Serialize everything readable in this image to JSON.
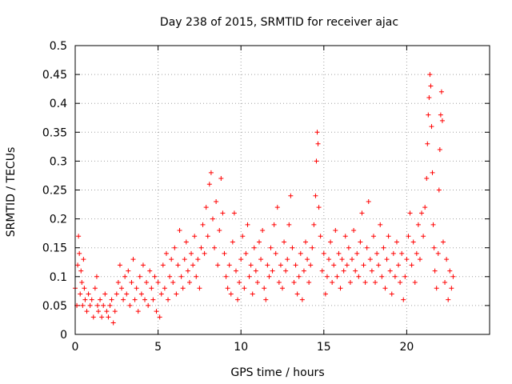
{
  "chart_data": {
    "type": "scatter",
    "title": "Day 238 of 2015, SRMTID for receiver ajac",
    "xlabel": "GPS time / hours",
    "ylabel": "SRMTID / TECUs",
    "xlim": [
      0,
      25
    ],
    "ylim": [
      0,
      0.5
    ],
    "xticks": [
      0,
      5,
      10,
      15,
      20
    ],
    "xtick_labels": [
      "0",
      "5",
      "10",
      "15",
      "20"
    ],
    "yticks": [
      0,
      0.05,
      0.1,
      0.15,
      0.2,
      0.25,
      0.3,
      0.35,
      0.4,
      0.45,
      0.5
    ],
    "ytick_labels": [
      "0",
      "0.05",
      "0.1",
      "0.15",
      "0.2",
      "0.25",
      "0.3",
      "0.35",
      "0.4",
      "0.45",
      "0.5"
    ],
    "grid": true,
    "marker": "+",
    "color": "#ff0000",
    "series": [
      {
        "name": "SRMTID",
        "points": [
          [
            0.0,
            0.08
          ],
          [
            0.1,
            0.05
          ],
          [
            0.15,
            0.12
          ],
          [
            0.2,
            0.17
          ],
          [
            0.25,
            0.14
          ],
          [
            0.3,
            0.07
          ],
          [
            0.35,
            0.11
          ],
          [
            0.4,
            0.09
          ],
          [
            0.45,
            0.05
          ],
          [
            0.5,
            0.13
          ],
          [
            0.55,
            0.08
          ],
          [
            0.6,
            0.06
          ],
          [
            0.7,
            0.04
          ],
          [
            0.8,
            0.07
          ],
          [
            0.9,
            0.05
          ],
          [
            1.0,
            0.06
          ],
          [
            1.1,
            0.03
          ],
          [
            1.2,
            0.08
          ],
          [
            1.3,
            0.1
          ],
          [
            1.35,
            0.05
          ],
          [
            1.4,
            0.04
          ],
          [
            1.5,
            0.06
          ],
          [
            1.6,
            0.03
          ],
          [
            1.7,
            0.05
          ],
          [
            1.8,
            0.07
          ],
          [
            1.9,
            0.04
          ],
          [
            2.0,
            0.03
          ],
          [
            2.1,
            0.05
          ],
          [
            2.2,
            0.06
          ],
          [
            2.3,
            0.02
          ],
          [
            2.4,
            0.04
          ],
          [
            2.5,
            0.07
          ],
          [
            2.6,
            0.09
          ],
          [
            2.7,
            0.12
          ],
          [
            2.8,
            0.08
          ],
          [
            2.9,
            0.06
          ],
          [
            3.0,
            0.1
          ],
          [
            3.1,
            0.07
          ],
          [
            3.2,
            0.11
          ],
          [
            3.3,
            0.05
          ],
          [
            3.4,
            0.09
          ],
          [
            3.5,
            0.13
          ],
          [
            3.6,
            0.06
          ],
          [
            3.7,
            0.08
          ],
          [
            3.8,
            0.04
          ],
          [
            3.9,
            0.1
          ],
          [
            4.0,
            0.07
          ],
          [
            4.1,
            0.12
          ],
          [
            4.2,
            0.06
          ],
          [
            4.3,
            0.09
          ],
          [
            4.4,
            0.05
          ],
          [
            4.5,
            0.11
          ],
          [
            4.6,
            0.08
          ],
          [
            4.7,
            0.06
          ],
          [
            4.8,
            0.1
          ],
          [
            4.9,
            0.04
          ],
          [
            5.0,
            0.09
          ],
          [
            5.1,
            0.03
          ],
          [
            5.2,
            0.07
          ],
          [
            5.3,
            0.12
          ],
          [
            5.4,
            0.08
          ],
          [
            5.5,
            0.14
          ],
          [
            5.6,
            0.06
          ],
          [
            5.7,
            0.1
          ],
          [
            5.8,
            0.13
          ],
          [
            5.9,
            0.09
          ],
          [
            6.0,
            0.15
          ],
          [
            6.1,
            0.07
          ],
          [
            6.2,
            0.12
          ],
          [
            6.3,
            0.18
          ],
          [
            6.4,
            0.1
          ],
          [
            6.5,
            0.08
          ],
          [
            6.6,
            0.13
          ],
          [
            6.7,
            0.16
          ],
          [
            6.8,
            0.11
          ],
          [
            6.9,
            0.09
          ],
          [
            7.0,
            0.14
          ],
          [
            7.1,
            0.12
          ],
          [
            7.2,
            0.17
          ],
          [
            7.3,
            0.1
          ],
          [
            7.4,
            0.13
          ],
          [
            7.5,
            0.08
          ],
          [
            7.6,
            0.15
          ],
          [
            7.7,
            0.19
          ],
          [
            7.8,
            0.14
          ],
          [
            7.9,
            0.22
          ],
          [
            8.0,
            0.17
          ],
          [
            8.1,
            0.26
          ],
          [
            8.2,
            0.28
          ],
          [
            8.3,
            0.2
          ],
          [
            8.4,
            0.15
          ],
          [
            8.5,
            0.23
          ],
          [
            8.6,
            0.12
          ],
          [
            8.7,
            0.18
          ],
          [
            8.8,
            0.27
          ],
          [
            8.9,
            0.21
          ],
          [
            9.0,
            0.14
          ],
          [
            9.1,
            0.1
          ],
          [
            9.2,
            0.08
          ],
          [
            9.3,
            0.12
          ],
          [
            9.4,
            0.07
          ],
          [
            9.5,
            0.16
          ],
          [
            9.6,
            0.21
          ],
          [
            9.7,
            0.11
          ],
          [
            9.8,
            0.06
          ],
          [
            9.9,
            0.09
          ],
          [
            10.0,
            0.13
          ],
          [
            10.1,
            0.17
          ],
          [
            10.2,
            0.08
          ],
          [
            10.3,
            0.14
          ],
          [
            10.4,
            0.19
          ],
          [
            10.5,
            0.1
          ],
          [
            10.6,
            0.12
          ],
          [
            10.7,
            0.07
          ],
          [
            10.8,
            0.15
          ],
          [
            10.9,
            0.11
          ],
          [
            11.0,
            0.09
          ],
          [
            11.1,
            0.16
          ],
          [
            11.2,
            0.13
          ],
          [
            11.3,
            0.18
          ],
          [
            11.4,
            0.08
          ],
          [
            11.5,
            0.06
          ],
          [
            11.6,
            0.12
          ],
          [
            11.7,
            0.1
          ],
          [
            11.8,
            0.15
          ],
          [
            11.9,
            0.11
          ],
          [
            12.0,
            0.19
          ],
          [
            12.1,
            0.14
          ],
          [
            12.2,
            0.22
          ],
          [
            12.3,
            0.09
          ],
          [
            12.4,
            0.12
          ],
          [
            12.5,
            0.08
          ],
          [
            12.6,
            0.16
          ],
          [
            12.7,
            0.11
          ],
          [
            12.8,
            0.13
          ],
          [
            12.9,
            0.19
          ],
          [
            13.0,
            0.24
          ],
          [
            13.1,
            0.15
          ],
          [
            13.2,
            0.09
          ],
          [
            13.3,
            0.12
          ],
          [
            13.4,
            0.07
          ],
          [
            13.5,
            0.1
          ],
          [
            13.6,
            0.14
          ],
          [
            13.7,
            0.06
          ],
          [
            13.8,
            0.11
          ],
          [
            13.9,
            0.16
          ],
          [
            14.0,
            0.13
          ],
          [
            14.1,
            0.09
          ],
          [
            14.2,
            0.12
          ],
          [
            14.3,
            0.15
          ],
          [
            14.4,
            0.19
          ],
          [
            14.5,
            0.24
          ],
          [
            14.55,
            0.3
          ],
          [
            14.6,
            0.35
          ],
          [
            14.65,
            0.33
          ],
          [
            14.7,
            0.22
          ],
          [
            14.8,
            0.17
          ],
          [
            14.9,
            0.11
          ],
          [
            15.0,
            0.14
          ],
          [
            15.1,
            0.07
          ],
          [
            15.2,
            0.1
          ],
          [
            15.3,
            0.13
          ],
          [
            15.4,
            0.16
          ],
          [
            15.5,
            0.09
          ],
          [
            15.6,
            0.12
          ],
          [
            15.7,
            0.18
          ],
          [
            15.8,
            0.1
          ],
          [
            15.9,
            0.14
          ],
          [
            16.0,
            0.08
          ],
          [
            16.1,
            0.13
          ],
          [
            16.2,
            0.11
          ],
          [
            16.3,
            0.17
          ],
          [
            16.4,
            0.12
          ],
          [
            16.5,
            0.15
          ],
          [
            16.6,
            0.09
          ],
          [
            16.7,
            0.13
          ],
          [
            16.8,
            0.18
          ],
          [
            16.9,
            0.11
          ],
          [
            17.0,
            0.14
          ],
          [
            17.1,
            0.1
          ],
          [
            17.2,
            0.16
          ],
          [
            17.3,
            0.21
          ],
          [
            17.4,
            0.12
          ],
          [
            17.5,
            0.09
          ],
          [
            17.6,
            0.15
          ],
          [
            17.7,
            0.23
          ],
          [
            17.8,
            0.13
          ],
          [
            17.9,
            0.11
          ],
          [
            18.0,
            0.17
          ],
          [
            18.1,
            0.09
          ],
          [
            18.2,
            0.14
          ],
          [
            18.3,
            0.12
          ],
          [
            18.4,
            0.19
          ],
          [
            18.5,
            0.1
          ],
          [
            18.6,
            0.15
          ],
          [
            18.7,
            0.08
          ],
          [
            18.8,
            0.13
          ],
          [
            18.9,
            0.17
          ],
          [
            19.0,
            0.11
          ],
          [
            19.1,
            0.07
          ],
          [
            19.2,
            0.14
          ],
          [
            19.3,
            0.1
          ],
          [
            19.4,
            0.16
          ],
          [
            19.5,
            0.12
          ],
          [
            19.6,
            0.09
          ],
          [
            19.7,
            0.14
          ],
          [
            19.8,
            0.06
          ],
          [
            19.9,
            0.1
          ],
          [
            20.0,
            0.13
          ],
          [
            20.1,
            0.17
          ],
          [
            20.2,
            0.21
          ],
          [
            20.3,
            0.12
          ],
          [
            20.4,
            0.16
          ],
          [
            20.5,
            0.09
          ],
          [
            20.6,
            0.14
          ],
          [
            20.7,
            0.19
          ],
          [
            20.8,
            0.13
          ],
          [
            20.9,
            0.21
          ],
          [
            21.0,
            0.17
          ],
          [
            21.1,
            0.22
          ],
          [
            21.2,
            0.27
          ],
          [
            21.25,
            0.33
          ],
          [
            21.3,
            0.38
          ],
          [
            21.35,
            0.41
          ],
          [
            21.4,
            0.45
          ],
          [
            21.45,
            0.43
          ],
          [
            21.5,
            0.36
          ],
          [
            21.55,
            0.28
          ],
          [
            21.6,
            0.19
          ],
          [
            21.65,
            0.15
          ],
          [
            21.7,
            0.11
          ],
          [
            21.8,
            0.08
          ],
          [
            21.9,
            0.14
          ],
          [
            21.95,
            0.25
          ],
          [
            22.0,
            0.32
          ],
          [
            22.05,
            0.38
          ],
          [
            22.1,
            0.42
          ],
          [
            22.15,
            0.37
          ],
          [
            22.2,
            0.16
          ],
          [
            22.3,
            0.09
          ],
          [
            22.4,
            0.13
          ],
          [
            22.5,
            0.06
          ],
          [
            22.6,
            0.11
          ],
          [
            22.7,
            0.08
          ],
          [
            22.8,
            0.1
          ]
        ]
      }
    ]
  }
}
